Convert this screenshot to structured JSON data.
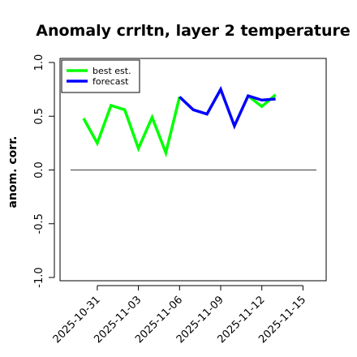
{
  "chart_data": {
    "type": "line",
    "title": "Anomaly crrltn, layer 2 temperature",
    "xlabel": "",
    "ylabel": "anom. corr.",
    "ylim": [
      -1.0,
      1.0
    ],
    "yticks": [
      "-1.0",
      "-0.5",
      "0.0",
      "0.5",
      "1.0"
    ],
    "xticks": [
      "2025-10-31",
      "2025-11-03",
      "2025-11-06",
      "2025-11-09",
      "2025-11-12",
      "2025-11-15"
    ],
    "highlight_tick": "2025-11-06",
    "highlight_color": "#228B22",
    "reference_line": 0,
    "legend": {
      "position": "top-left"
    },
    "series": [
      {
        "name": "best est.",
        "color": "#00ff00",
        "x": [
          "2025-10-30",
          "2025-10-31",
          "2025-11-01",
          "2025-11-02",
          "2025-11-03",
          "2025-11-04",
          "2025-11-05",
          "2025-11-06",
          "2025-11-07",
          "2025-11-08",
          "2025-11-09",
          "2025-11-10",
          "2025-11-11",
          "2025-11-12",
          "2025-11-13"
        ],
        "values": [
          0.48,
          0.25,
          0.6,
          0.56,
          0.2,
          0.49,
          0.16,
          0.68,
          null,
          null,
          null,
          null,
          0.69,
          0.59,
          0.7
        ]
      },
      {
        "name": "forecast",
        "color": "#0000ff",
        "x": [
          "2025-11-06",
          "2025-11-07",
          "2025-11-08",
          "2025-11-09",
          "2025-11-10",
          "2025-11-11",
          "2025-11-12",
          "2025-11-13"
        ],
        "values": [
          0.68,
          0.56,
          0.52,
          0.75,
          0.41,
          0.69,
          0.65,
          0.66
        ]
      }
    ]
  }
}
